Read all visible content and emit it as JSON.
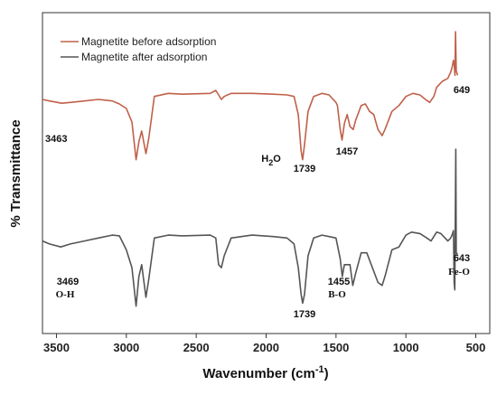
{
  "chart_data": {
    "type": "line",
    "xlabel": "Wavenumber (cm",
    "xlabel_superscript": "-1",
    "xlabel_close": ")",
    "ylabel": "% Transmittance",
    "xlim": [
      3600,
      400
    ],
    "x_reversed": true,
    "x_ticks": [
      "3500",
      "3000",
      "2500",
      "2000",
      "1500",
      "1000",
      "500"
    ],
    "grid": false,
    "legend_position": "top-left",
    "series": [
      {
        "name": "Magnetite before adsorption",
        "color": "#c0604a",
        "x": [
          3600,
          3550,
          3463,
          3400,
          3300,
          3200,
          3100,
          3050,
          3000,
          2960,
          2930,
          2910,
          2890,
          2860,
          2840,
          2800,
          2700,
          2600,
          2400,
          2360,
          2340,
          2320,
          2300,
          2250,
          2100,
          1950,
          1850,
          1800,
          1770,
          1750,
          1739,
          1725,
          1700,
          1660,
          1600,
          1550,
          1500,
          1490,
          1470,
          1457,
          1440,
          1420,
          1400,
          1377,
          1360,
          1320,
          1290,
          1260,
          1230,
          1200,
          1170,
          1150,
          1100,
          1050,
          1000,
          950,
          900,
          860,
          830,
          800,
          780,
          760,
          740,
          720,
          700,
          690,
          680,
          670,
          660,
          655,
          649,
          645,
          640,
          630
        ],
        "y": [
          0.7,
          0.69,
          0.675,
          0.68,
          0.69,
          0.7,
          0.69,
          0.67,
          0.64,
          0.55,
          0.3,
          0.42,
          0.49,
          0.34,
          0.44,
          0.72,
          0.74,
          0.735,
          0.74,
          0.76,
          0.73,
          0.7,
          0.72,
          0.74,
          0.74,
          0.735,
          0.73,
          0.72,
          0.6,
          0.36,
          0.3,
          0.4,
          0.62,
          0.72,
          0.74,
          0.73,
          0.68,
          0.66,
          0.5,
          0.43,
          0.54,
          0.6,
          0.52,
          0.5,
          0.56,
          0.66,
          0.67,
          0.62,
          0.6,
          0.5,
          0.46,
          0.5,
          0.62,
          0.66,
          0.72,
          0.74,
          0.73,
          0.7,
          0.68,
          0.72,
          0.78,
          0.8,
          0.82,
          0.83,
          0.84,
          0.86,
          0.88,
          0.91,
          0.96,
          0.93,
          0.86,
          1.15,
          0.89,
          0.86
        ]
      },
      {
        "name": "Magnetite after adsorption",
        "color": "#555555",
        "x": [
          3600,
          3550,
          3469,
          3400,
          3300,
          3200,
          3100,
          3050,
          3000,
          2960,
          2930,
          2910,
          2890,
          2860,
          2840,
          2800,
          2700,
          2600,
          2400,
          2360,
          2340,
          2320,
          2300,
          2250,
          2100,
          1950,
          1850,
          1800,
          1770,
          1750,
          1739,
          1725,
          1700,
          1660,
          1600,
          1550,
          1500,
          1470,
          1455,
          1440,
          1400,
          1380,
          1360,
          1320,
          1280,
          1200,
          1170,
          1150,
          1100,
          1050,
          1000,
          960,
          900,
          850,
          820,
          780,
          750,
          720,
          700,
          690,
          680,
          670,
          660,
          655,
          650,
          648,
          643,
          640,
          630
        ],
        "y": [
          0.68,
          0.66,
          0.64,
          0.66,
          0.68,
          0.7,
          0.72,
          0.715,
          0.62,
          0.5,
          0.24,
          0.44,
          0.52,
          0.3,
          0.42,
          0.7,
          0.72,
          0.715,
          0.72,
          0.7,
          0.52,
          0.5,
          0.58,
          0.7,
          0.72,
          0.71,
          0.7,
          0.66,
          0.5,
          0.32,
          0.26,
          0.32,
          0.58,
          0.7,
          0.72,
          0.71,
          0.7,
          0.56,
          0.44,
          0.52,
          0.52,
          0.38,
          0.46,
          0.6,
          0.6,
          0.4,
          0.38,
          0.44,
          0.62,
          0.64,
          0.72,
          0.74,
          0.73,
          0.7,
          0.68,
          0.74,
          0.73,
          0.7,
          0.68,
          0.69,
          0.7,
          0.72,
          0.75,
          0.4,
          0.35,
          0.6,
          1.3,
          0.6,
          0.59
        ]
      }
    ],
    "annotations": [
      {
        "series": 0,
        "x": 3463,
        "y": 0.675,
        "label": "3463",
        "font": "sans"
      },
      {
        "series": 0,
        "x": 1739,
        "y": 0.3,
        "label": "1739",
        "font": "sans"
      },
      {
        "series": 0,
        "x": 1457,
        "y": 0.43,
        "label": "1457",
        "font": "sans"
      },
      {
        "series": 0,
        "x": 649,
        "y": 0.86,
        "label": "649",
        "font": "sans"
      },
      {
        "series": 0,
        "x": 1739,
        "y": 0.3,
        "label": "H",
        "sub": "2",
        "tail": "O",
        "font": "sans"
      },
      {
        "series": 1,
        "x": 3469,
        "y": 0.64,
        "label": "3469",
        "font": "sans"
      },
      {
        "series": 1,
        "x": 3469,
        "y": 0.64,
        "label": "O-H",
        "font": "serif"
      },
      {
        "series": 1,
        "x": 1739,
        "y": 0.26,
        "label": "1739",
        "font": "sans"
      },
      {
        "series": 1,
        "x": 1455,
        "y": 0.44,
        "label": "1455",
        "font": "sans"
      },
      {
        "series": 1,
        "x": 1455,
        "y": 0.44,
        "label": "B-O",
        "font": "serif"
      },
      {
        "series": 1,
        "x": 643,
        "y": 0.6,
        "label": "643",
        "font": "sans"
      },
      {
        "series": 1,
        "x": 643,
        "y": 0.6,
        "label": "Fe-O",
        "font": "serif"
      }
    ]
  }
}
